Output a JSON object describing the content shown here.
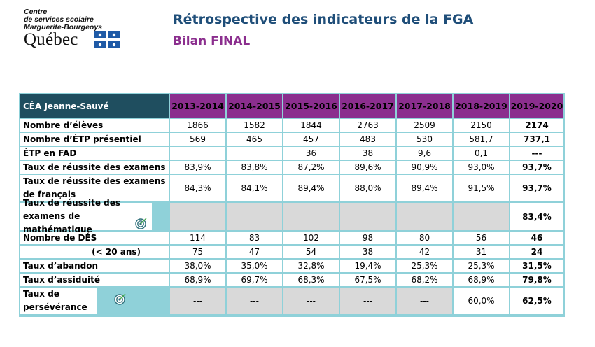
{
  "logo": {
    "lines": [
      "Centre",
      "de services scolaire",
      "Marguerite-Bourgeoys"
    ],
    "word": "Québec"
  },
  "header": {
    "title": "Rétrospective des indicateurs de la FGA",
    "subtitle": "Bilan FINAL"
  },
  "table": {
    "corner": "CÉA Jeanne-Sauvé",
    "years": [
      "2013-2014",
      "2014-2015",
      "2015-2016",
      "2016-2017",
      "2017-2018",
      "2018-2019",
      "2019-2020"
    ],
    "rows": [
      {
        "label": "Nombre d’élèves",
        "values": [
          "1866",
          "1582",
          "1844",
          "2763",
          "2509",
          "2150",
          "2174"
        ]
      },
      {
        "label": "Nombre d’ÉTP présentiel",
        "values": [
          "569",
          "465",
          "457",
          "483",
          "530",
          "581,7",
          "737,1"
        ]
      },
      {
        "label": "ÉTP en FAD",
        "values": [
          "",
          "",
          "36",
          "38",
          "9,6",
          "0,1",
          "---"
        ]
      },
      {
        "label": "Taux de réussite des examens",
        "values": [
          "83,9%",
          "83,8%",
          "87,2%",
          "89,6%",
          "90,9%",
          "93,0%",
          "93,7%"
        ]
      },
      {
        "label": "Taux de réussite des examens de français",
        "values": [
          "84,3%",
          "84,1%",
          "89,4%",
          "88,0%",
          "89,4%",
          "91,5%",
          "93,7%"
        ]
      },
      {
        "label": "Taux de réussite des examens de mathématique",
        "values": [
          "",
          "",
          "",
          "",
          "",
          "",
          "83,4%"
        ]
      },
      {
        "label": "Nombre de DÉS",
        "values": [
          "114",
          "83",
          "102",
          "98",
          "80",
          "56",
          "46"
        ]
      },
      {
        "label": "(< 20 ans)",
        "values": [
          "75",
          "47",
          "54",
          "38",
          "42",
          "31",
          "24"
        ]
      },
      {
        "label": "Taux d’abandon",
        "values": [
          "38,0%",
          "35,0%",
          "32,8%",
          "19,4%",
          "25,3%",
          "25,3%",
          "31,5%"
        ]
      },
      {
        "label": "Taux d’assiduité",
        "values": [
          "68,9%",
          "69,7%",
          "68,3%",
          "67,5%",
          "68,2%",
          "68,9%",
          "79,8%"
        ]
      },
      {
        "label": "Taux de persévérance",
        "values": [
          "---",
          "---",
          "---",
          "---",
          "---",
          "60,0%",
          "62,5%"
        ]
      }
    ]
  },
  "colors": {
    "header_purple": "#8b2e8e",
    "corner_teal": "#1f4e5f",
    "grid_border": "#8fd1d9",
    "gray_cell": "#d9d9d9",
    "title_blue": "#1f4e79"
  },
  "icons": {
    "target": "target-icon",
    "flag": "quebec-flag-icon"
  }
}
